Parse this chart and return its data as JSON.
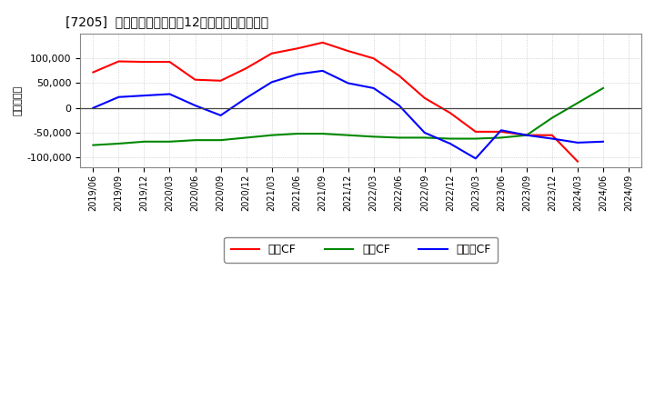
{
  "title": "[7205]  キャッシュフローの12か月移動合計の推移",
  "ylabel": "（百万円）",
  "x_labels": [
    "2019/06",
    "2019/09",
    "2019/12",
    "2020/03",
    "2020/06",
    "2020/09",
    "2020/12",
    "2021/03",
    "2021/06",
    "2021/09",
    "2021/12",
    "2022/03",
    "2022/06",
    "2022/09",
    "2022/12",
    "2023/03",
    "2023/06",
    "2023/09",
    "2023/12",
    "2024/03",
    "2024/06",
    "2024/09"
  ],
  "operating_cf": [
    72000,
    94000,
    93000,
    93000,
    57000,
    55000,
    80000,
    110000,
    120000,
    132000,
    115000,
    100000,
    65000,
    20000,
    -10000,
    -48000,
    -48000,
    -55000,
    -55000,
    -108000,
    null,
    null
  ],
  "investing_cf": [
    -75000,
    -72000,
    -68000,
    -68000,
    -65000,
    -65000,
    -60000,
    -55000,
    -52000,
    -52000,
    -55000,
    -58000,
    -60000,
    -60000,
    -62000,
    -62000,
    -60000,
    -55000,
    -20000,
    10000,
    40000,
    null
  ],
  "free_cf": [
    0,
    22000,
    25000,
    28000,
    5000,
    -15000,
    20000,
    52000,
    68000,
    75000,
    50000,
    40000,
    5000,
    -50000,
    -72000,
    -102000,
    -45000,
    -55000,
    -62000,
    -70000,
    -68000,
    null
  ],
  "operating_color": "#ff0000",
  "investing_color": "#008800",
  "free_cf_color": "#0000ff",
  "background_color": "#ffffff",
  "grid_color": "#bbbbbb",
  "ylim": [
    -120000,
    150000
  ],
  "yticks": [
    -100000,
    -50000,
    0,
    50000,
    100000
  ],
  "legend_labels": [
    "営業CF",
    "投資CF",
    "フリーCF"
  ]
}
